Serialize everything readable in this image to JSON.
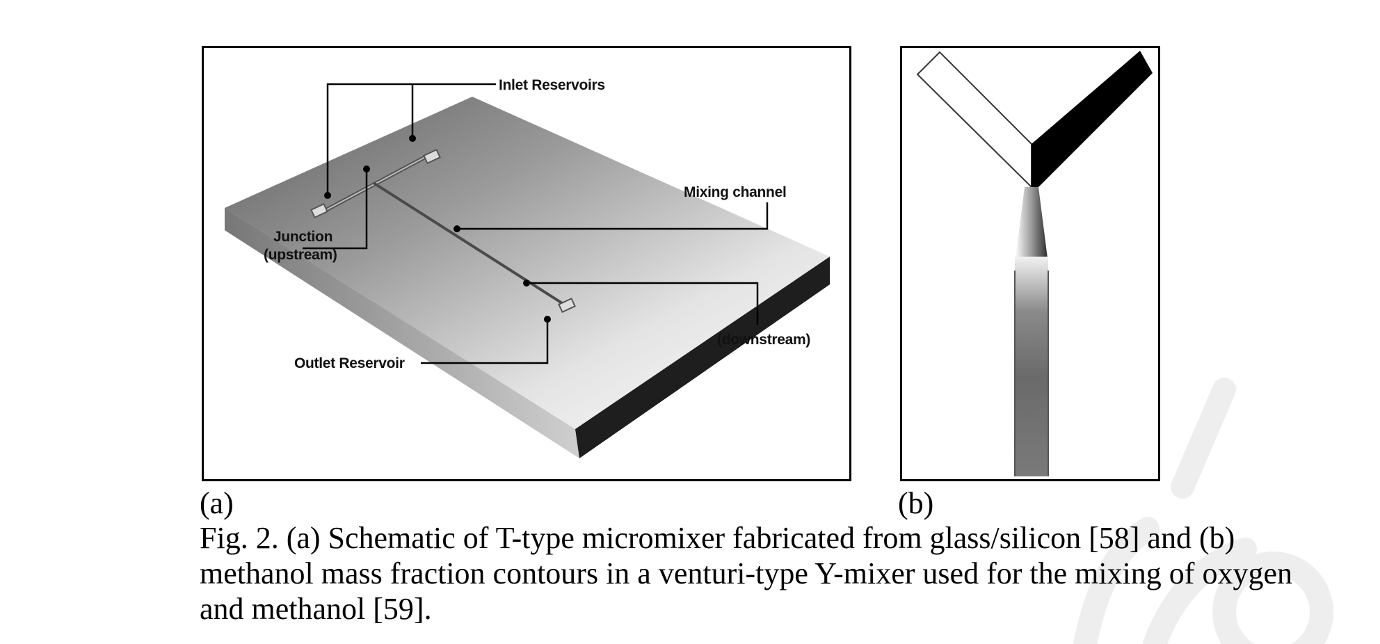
{
  "figure": {
    "panel_a": {
      "label": "(a)",
      "callouts": {
        "inlet": "Inlet Reservoirs",
        "mixing": "Mixing channel",
        "junction_line1": "Junction",
        "junction_line2": "(upstream)",
        "outlet": "Outlet Reservoir",
        "downstream": "(downstream)"
      }
    },
    "panel_b": {
      "label": "(b)"
    },
    "caption": "Fig. 2. (a) Schematic of T-type micromixer fabricated from glass/silicon [58] and (b) methanol mass fraction contours in a venturi-type Y-mixer used for the mixing of oxygen and methanol [59]."
  },
  "colors": {
    "frame": "#000000",
    "watermark": "#f0f0f0",
    "slab_top_dark": "#6e6e6e",
    "slab_side": "#1e1e1e"
  }
}
